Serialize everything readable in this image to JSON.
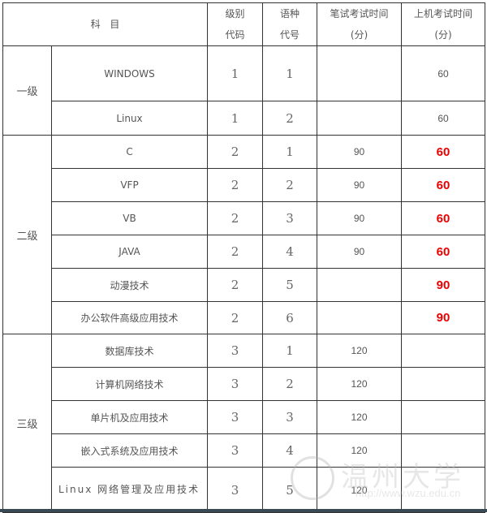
{
  "header": {
    "subject": "科  目",
    "level_code": [
      "级别",
      "代码"
    ],
    "lang_code": [
      "语种",
      "代号"
    ],
    "written_time": [
      "笔试考试时间",
      "(分)"
    ],
    "computer_time": [
      "上机考试时间",
      "(分)"
    ]
  },
  "levels": [
    {
      "label": "一级",
      "rows": [
        {
          "subject": "WINDOWS",
          "level": "1",
          "lang": "1",
          "written": "",
          "computer": "60",
          "highlight": false
        },
        {
          "subject": "Linux",
          "level": "1",
          "lang": "2",
          "written": "",
          "computer": "60",
          "highlight": false
        }
      ]
    },
    {
      "label": "二级",
      "rows": [
        {
          "subject": "C",
          "level": "2",
          "lang": "1",
          "written": "90",
          "computer": "60",
          "highlight": true
        },
        {
          "subject": "VFP",
          "level": "2",
          "lang": "2",
          "written": "90",
          "computer": "60",
          "highlight": true
        },
        {
          "subject": "VB",
          "level": "2",
          "lang": "3",
          "written": "90",
          "computer": "60",
          "highlight": true
        },
        {
          "subject": "JAVA",
          "level": "2",
          "lang": "4",
          "written": "90",
          "computer": "60",
          "highlight": true
        },
        {
          "subject": "动漫技术",
          "level": "2",
          "lang": "5",
          "written": "",
          "computer": "90",
          "highlight": true
        },
        {
          "subject": "办公软件高级应用技术",
          "level": "2",
          "lang": "6",
          "written": "",
          "computer": "90",
          "highlight": true
        }
      ]
    },
    {
      "label": "三级",
      "rows": [
        {
          "subject": "数据库技术",
          "level": "3",
          "lang": "1",
          "written": "120",
          "computer": "",
          "highlight": false
        },
        {
          "subject": "计算机网络技术",
          "level": "3",
          "lang": "2",
          "written": "120",
          "computer": "",
          "highlight": false
        },
        {
          "subject": "单片机及应用技术",
          "level": "3",
          "lang": "3",
          "written": "120",
          "computer": "",
          "highlight": false
        },
        {
          "subject": "嵌入式系统及应用技术",
          "level": "3",
          "lang": "4",
          "written": "120",
          "computer": "",
          "highlight": false
        },
        {
          "subject": "Linux 网络管理及应用技术",
          "level": "3",
          "lang": "5",
          "written": "120",
          "computer": "",
          "highlight": false
        }
      ]
    }
  ],
  "highlight_color": "#ee0000",
  "watermark": {
    "name": "温州大学",
    "url": "http://www.wzu.edu.cn"
  }
}
